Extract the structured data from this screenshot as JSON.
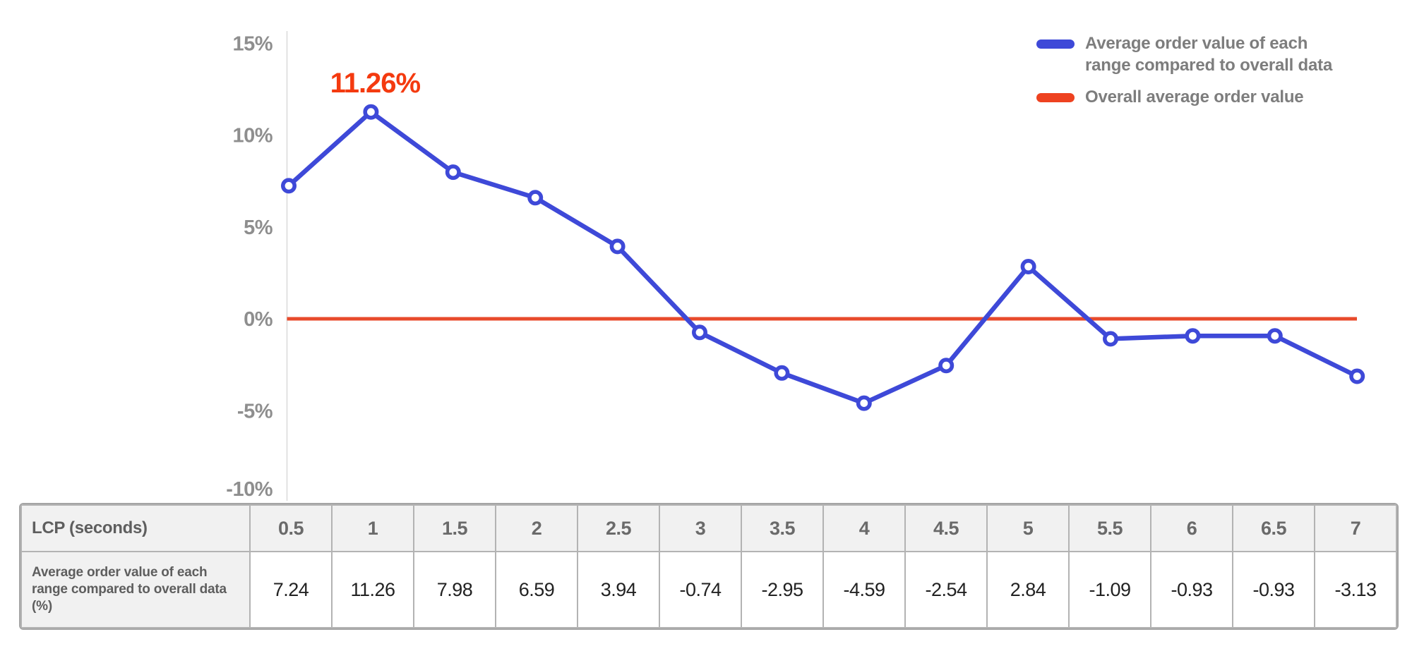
{
  "colors": {
    "series_blue": "#3e49d8",
    "reference_red": "#e84a2b",
    "legend_red": "#ee4220",
    "annotation_red": "#f43a0f",
    "axis_line_gray": "#dcdcdc",
    "axis_label_gray": "#8e8e8e",
    "legend_text_gray": "#7d7d7d",
    "table_header_bg": "#f1f1f1",
    "table_border_gray": "#b3b3b3"
  },
  "chart_data": {
    "type": "line",
    "x": [
      0.5,
      1,
      1.5,
      2,
      2.5,
      3,
      3.5,
      4,
      4.5,
      5,
      5.5,
      6,
      6.5,
      7
    ],
    "series": [
      {
        "name": "Average order value of each range compared to overall data",
        "color": "#3e49d8",
        "values": [
          7.24,
          11.26,
          7.98,
          6.59,
          3.94,
          -0.74,
          -2.95,
          -4.59,
          -2.54,
          2.84,
          -1.09,
          -0.93,
          -0.93,
          -3.13
        ]
      }
    ],
    "reference_line": {
      "name": "Overall average order value",
      "value": 0,
      "color": "#e84a2b"
    },
    "annotation": {
      "text": "11.26%",
      "x_index": 1,
      "value": 11.26
    },
    "yticks": [
      {
        "value": 15,
        "label": "15%"
      },
      {
        "value": 10,
        "label": "10%"
      },
      {
        "value": 5,
        "label": "5%"
      },
      {
        "value": 0,
        "label": "0%"
      },
      {
        "value": -5,
        "label": "-5%"
      },
      {
        "value": -10,
        "label": "-10%"
      }
    ],
    "ylim": [
      -10,
      15
    ],
    "xlabel": "LCP (seconds)",
    "ylabel": "",
    "grid": "off",
    "legend_position": "top-right"
  },
  "legend": {
    "items": [
      {
        "color": "#3e49d8",
        "lines": [
          "Average order value of each",
          "range compared to overall data"
        ]
      },
      {
        "color": "#ee4220",
        "lines": [
          "Overall average order value"
        ]
      }
    ]
  },
  "table": {
    "header_label": "LCP (seconds)",
    "row_label": "Average order value of each range compared to overall data (%)",
    "columns": [
      "0.5",
      "1",
      "1.5",
      "2",
      "2.5",
      "3",
      "3.5",
      "4",
      "4.5",
      "5",
      "5.5",
      "6",
      "6.5",
      "7"
    ],
    "values": [
      "7.24",
      "11.26",
      "7.98",
      "6.59",
      "3.94",
      "-0.74",
      "-2.95",
      "-4.59",
      "-2.54",
      "2.84",
      "-1.09",
      "-0.93",
      "-0.93",
      "-3.13"
    ]
  }
}
